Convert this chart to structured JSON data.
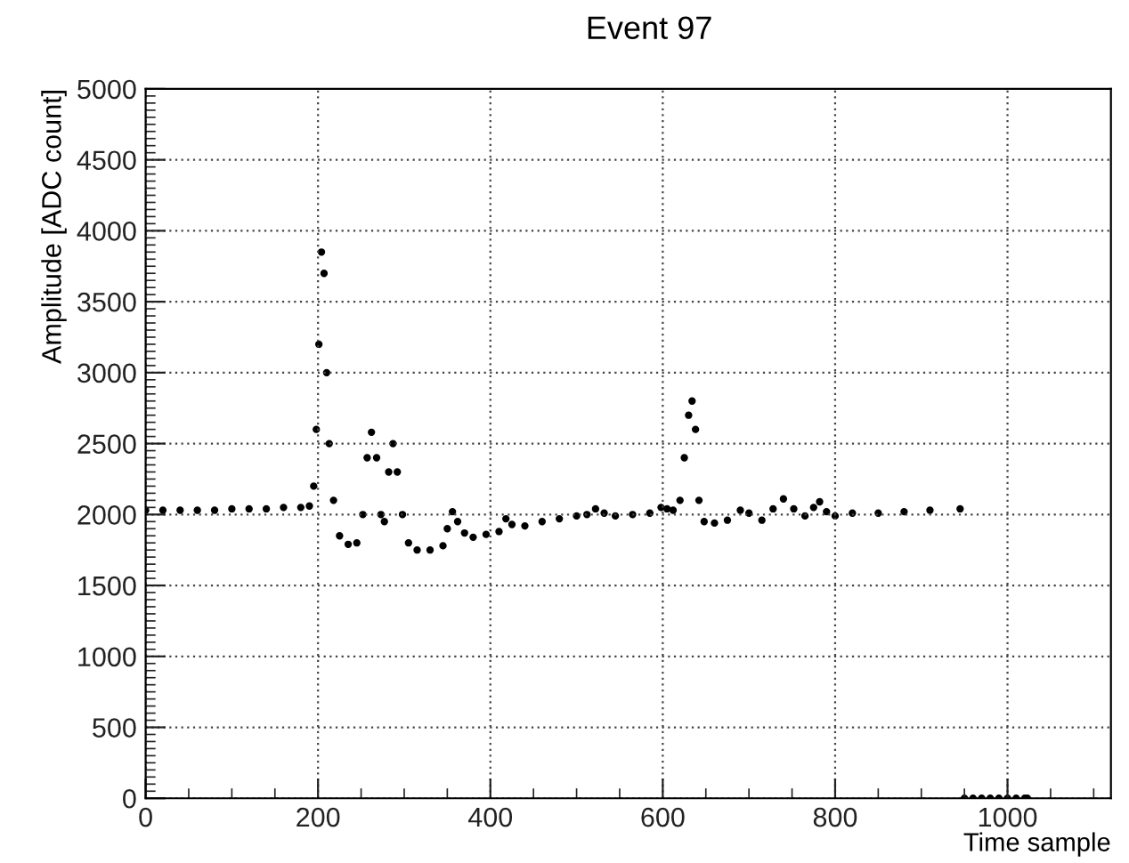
{
  "chart_data": {
    "type": "scatter",
    "title": "Event 97",
    "xlabel": "Time sample",
    "ylabel": "Amplitude [ADC count]",
    "xlim": [
      0,
      1120
    ],
    "xticks": [
      0,
      200,
      400,
      600,
      800,
      1000
    ],
    "ylim": [
      0,
      5000
    ],
    "yticks": [
      0,
      500,
      1000,
      1500,
      2000,
      2500,
      3000,
      3500,
      4000,
      4500,
      5000
    ],
    "grid": true,
    "marker": "circle",
    "series": [
      {
        "color": "#000000",
        "x": [
          0,
          20,
          40,
          60,
          80,
          100,
          120,
          140,
          160,
          180,
          190,
          195,
          198,
          201,
          204,
          207,
          210,
          213,
          218,
          225,
          235,
          245,
          252,
          257,
          262,
          268,
          273,
          277,
          282,
          287,
          292,
          298,
          305,
          315,
          330,
          345,
          350,
          356,
          362,
          370,
          380,
          395,
          410,
          418,
          425,
          440,
          460,
          480,
          500,
          512,
          522,
          532,
          545,
          565,
          585,
          598,
          605,
          612,
          620,
          625,
          630,
          634,
          638,
          642,
          648,
          660,
          675,
          690,
          700,
          715,
          728,
          740,
          752,
          765,
          775,
          782,
          790,
          800,
          820,
          850,
          880,
          910,
          945,
          950,
          960,
          970,
          980,
          990,
          1000,
          1010,
          1020,
          1023
        ],
        "values": [
          2030,
          2030,
          2030,
          2030,
          2030,
          2040,
          2040,
          2040,
          2050,
          2050,
          2060,
          2200,
          2600,
          3200,
          3850,
          3700,
          3000,
          2500,
          2100,
          1850,
          1790,
          1800,
          2000,
          2400,
          2580,
          2400,
          2000,
          1950,
          2300,
          2500,
          2300,
          2000,
          1800,
          1750,
          1750,
          1780,
          1900,
          2020,
          1950,
          1870,
          1840,
          1860,
          1880,
          1970,
          1930,
          1920,
          1950,
          1970,
          1990,
          2000,
          2040,
          2010,
          1990,
          2000,
          2010,
          2050,
          2040,
          2030,
          2100,
          2400,
          2700,
          2800,
          2600,
          2100,
          1950,
          1940,
          1960,
          2030,
          2010,
          1960,
          2040,
          2110,
          2040,
          1990,
          2050,
          2090,
          2020,
          1990,
          2010,
          2010,
          2020,
          2030,
          2040,
          0,
          0,
          0,
          0,
          0,
          0,
          0,
          0,
          0
        ]
      }
    ]
  }
}
